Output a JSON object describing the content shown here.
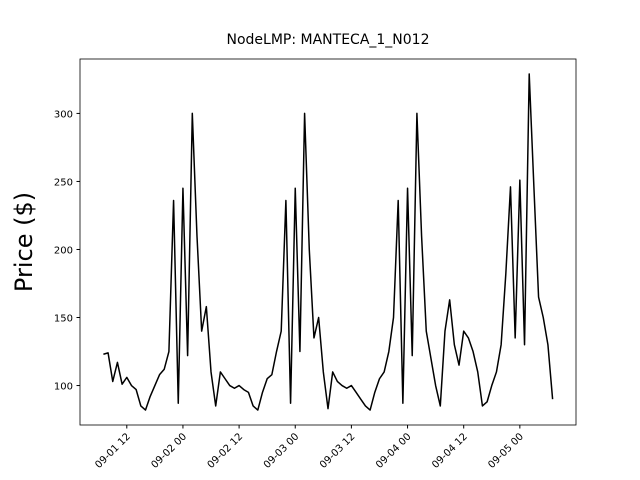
{
  "chart_data": {
    "type": "line",
    "title": "NodeLMP: MANTECA_1_N012",
    "y_label": "Price ($)",
    "x": [
      "09-01 07",
      "09-01 08",
      "09-01 09",
      "09-01 10",
      "09-01 11",
      "09-01 12",
      "09-01 13",
      "09-01 14",
      "09-01 15",
      "09-01 16",
      "09-01 17",
      "09-01 18",
      "09-01 19",
      "09-01 20",
      "09-01 21",
      "09-01 22",
      "09-01 23",
      "09-02 00",
      "09-02 01",
      "09-02 02",
      "09-02 03",
      "09-02 04",
      "09-02 05",
      "09-02 06",
      "09-02 07",
      "09-02 08",
      "09-02 09",
      "09-02 10",
      "09-02 11",
      "09-02 12",
      "09-02 13",
      "09-02 14",
      "09-02 15",
      "09-02 16",
      "09-02 17",
      "09-02 18",
      "09-02 19",
      "09-02 20",
      "09-02 21",
      "09-02 22",
      "09-02 23",
      "09-03 00",
      "09-03 01",
      "09-03 02",
      "09-03 03",
      "09-03 04",
      "09-03 05",
      "09-03 06",
      "09-03 07",
      "09-03 08",
      "09-03 09",
      "09-03 10",
      "09-03 11",
      "09-03 12",
      "09-03 13",
      "09-03 14",
      "09-03 15",
      "09-03 16",
      "09-03 17",
      "09-03 18",
      "09-03 19",
      "09-03 20",
      "09-03 21",
      "09-03 22",
      "09-03 23",
      "09-04 00",
      "09-04 01",
      "09-04 02",
      "09-04 03",
      "09-04 04",
      "09-04 05",
      "09-04 06",
      "09-04 07",
      "09-04 08",
      "09-04 09",
      "09-04 10",
      "09-04 11",
      "09-04 12",
      "09-04 13",
      "09-04 14",
      "09-04 15",
      "09-04 16",
      "09-04 17",
      "09-04 18",
      "09-04 19",
      "09-04 20",
      "09-04 21",
      "09-04 22",
      "09-04 23",
      "09-05 00",
      "09-05 01",
      "09-05 02",
      "09-05 03",
      "09-05 04",
      "09-05 05",
      "09-05 06",
      "09-05 07"
    ],
    "series": [
      {
        "color": "#000000",
        "values": [
          123,
          124,
          103,
          117,
          101,
          106,
          100,
          97,
          85,
          82,
          92,
          100,
          108,
          112,
          125,
          236,
          87,
          245,
          122,
          300,
          210,
          140,
          158,
          110,
          85,
          110,
          105,
          100,
          98,
          100,
          97,
          95,
          85,
          82,
          95,
          105,
          108,
          125,
          140,
          236,
          87,
          245,
          125,
          300,
          200,
          135,
          150,
          110,
          83,
          110,
          103,
          100,
          98,
          100,
          95,
          90,
          85,
          82,
          95,
          105,
          110,
          125,
          150,
          236,
          87,
          245,
          122,
          300,
          210,
          140,
          120,
          100,
          85,
          140,
          163,
          130,
          115,
          140,
          135,
          125,
          110,
          85,
          88,
          100,
          110,
          130,
          182,
          246,
          135,
          251,
          130,
          329,
          246,
          165,
          150,
          130,
          90
        ]
      }
    ],
    "xlim": [
      "09-01 02",
      "09-05 12"
    ],
    "xticks": [
      "09-01 12",
      "09-02 00",
      "09-02 12",
      "09-03 00",
      "09-03 12",
      "09-04 00",
      "09-04 12",
      "09-05 00"
    ],
    "ylim": [
      71,
      340
    ],
    "yticks": [
      100,
      150,
      200,
      250,
      300
    ]
  }
}
